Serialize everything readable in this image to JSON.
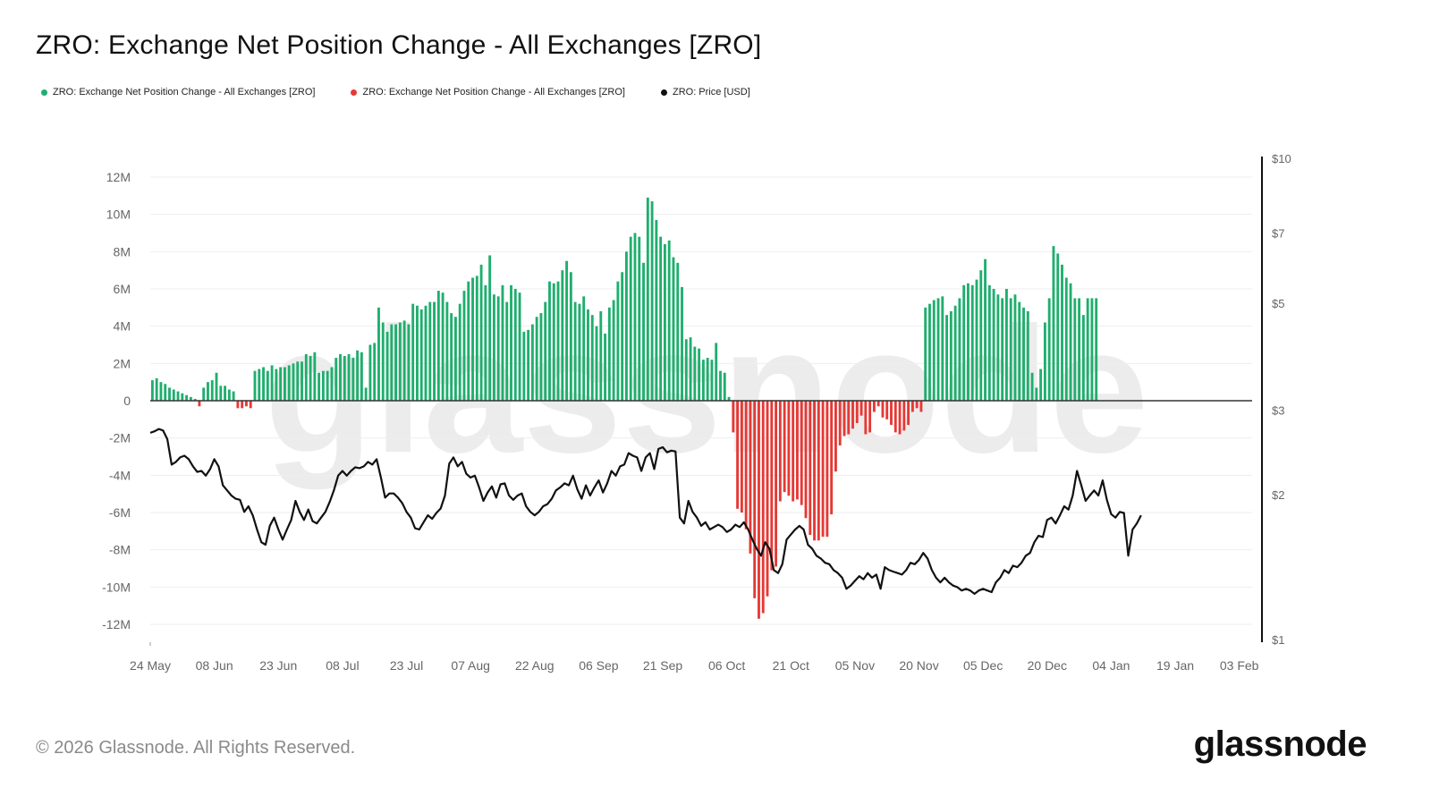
{
  "title": "ZRO: Exchange Net Position Change - All Exchanges [ZRO]",
  "legend": [
    {
      "label": "ZRO: Exchange Net Position Change - All Exchanges [ZRO]",
      "color": "#1fae6e"
    },
    {
      "label": "ZRO: Exchange Net Position Change - All Exchanges [ZRO]",
      "color": "#e53935"
    },
    {
      "label": "ZRO: Price [USD]",
      "color": "#111111"
    }
  ],
  "footer": "© 2026 Glassnode. All Rights Reserved.",
  "brand": "glassnode",
  "watermark": "glassnode",
  "colors": {
    "positive": "#1fae6e",
    "negative": "#e53935",
    "price": "#111111",
    "grid": "#eeeeee",
    "axis": "#111111"
  },
  "chart_data": {
    "type": "bar",
    "title": "ZRO: Exchange Net Position Change - All Exchanges [ZRO]",
    "ylim": [
      -13000000,
      13000000
    ],
    "y_ticks": [
      12000000,
      10000000,
      8000000,
      6000000,
      4000000,
      2000000,
      0,
      -2000000,
      -4000000,
      -6000000,
      -8000000,
      -10000000,
      -12000000
    ],
    "y_tick_labels": [
      "12M",
      "10M",
      "8M",
      "6M",
      "4M",
      "2M",
      "0",
      "-2M",
      "-4M",
      "-6M",
      "-8M",
      "-10M",
      "-12M"
    ],
    "y2_scale": "log",
    "y2lim": [
      1,
      11
    ],
    "y2_ticks": [
      10,
      7,
      5,
      3,
      2,
      1
    ],
    "y2_tick_labels": [
      "$10",
      "$7",
      "$5",
      "$3",
      "$2",
      "$1"
    ],
    "x_tick_labels": [
      "24 May",
      "08 Jun",
      "23 Jun",
      "08 Jul",
      "23 Jul",
      "07 Aug",
      "22 Aug",
      "06 Sep",
      "21 Sep",
      "06 Oct",
      "21 Oct",
      "05 Nov",
      "20 Nov",
      "05 Dec",
      "20 Dec",
      "04 Jan",
      "19 Jan",
      "03 Feb"
    ],
    "x_tick_days": [
      0,
      15,
      30,
      45,
      60,
      75,
      90,
      105,
      120,
      135,
      150,
      165,
      180,
      195,
      210,
      225,
      240,
      255
    ],
    "series": [
      {
        "name": "Exchange Net Position Change",
        "unit": "ZRO",
        "start_day": 0,
        "step_days": 1,
        "values": [
          1100000,
          1200000,
          1000000,
          900000,
          700000,
          600000,
          500000,
          400000,
          300000,
          200000,
          100000,
          -300000,
          700000,
          1000000,
          1100000,
          1500000,
          800000,
          800000,
          600000,
          500000,
          -400000,
          -400000,
          -300000,
          -400000,
          1600000,
          1700000,
          1800000,
          1600000,
          1900000,
          1700000,
          1800000,
          1800000,
          1900000,
          2000000,
          2100000,
          2100000,
          2500000,
          2400000,
          2600000,
          1500000,
          1600000,
          1600000,
          1800000,
          2300000,
          2500000,
          2400000,
          2500000,
          2300000,
          2700000,
          2600000,
          700000,
          3000000,
          3100000,
          5000000,
          4200000,
          3700000,
          4100000,
          4100000,
          4200000,
          4300000,
          4100000,
          5200000,
          5100000,
          4900000,
          5100000,
          5300000,
          5300000,
          5900000,
          5800000,
          5300000,
          4700000,
          4500000,
          5200000,
          5900000,
          6400000,
          6600000,
          6700000,
          7300000,
          6200000,
          7800000,
          5700000,
          5600000,
          6200000,
          5300000,
          6200000,
          6000000,
          5800000,
          3700000,
          3800000,
          4100000,
          4500000,
          4700000,
          5300000,
          6400000,
          6300000,
          6400000,
          7000000,
          7500000,
          6900000,
          5300000,
          5200000,
          5600000,
          4900000,
          4600000,
          4000000,
          4800000,
          3600000,
          5000000,
          5400000,
          6400000,
          6900000,
          8000000,
          8800000,
          9000000,
          8800000,
          7400000,
          10900000,
          10700000,
          9700000,
          8800000,
          8400000,
          8600000,
          7700000,
          7400000,
          6100000,
          3300000,
          3400000,
          2900000,
          2800000,
          2200000,
          2300000,
          2200000,
          3100000,
          1600000,
          1500000,
          200000,
          -1700000,
          -5800000,
          -6000000,
          -6900000,
          -8200000,
          -10600000,
          -11700000,
          -11400000,
          -10500000,
          -9100000,
          -8900000,
          -5400000,
          -4900000,
          -5100000,
          -5400000,
          -5300000,
          -5600000,
          -6300000,
          -7200000,
          -7500000,
          -7500000,
          -7300000,
          -7300000,
          -6100000,
          -3800000,
          -2400000,
          -1900000,
          -1800000,
          -1500000,
          -1200000,
          -800000,
          -1800000,
          -1700000,
          -600000,
          -300000,
          -900000,
          -1000000,
          -1300000,
          -1700000,
          -1800000,
          -1600000,
          -1300000,
          -600000,
          -400000,
          -600000,
          5000000,
          5200000,
          5400000,
          5500000,
          5600000,
          4600000,
          4800000,
          5100000,
          5500000,
          6200000,
          6300000,
          6200000,
          6500000,
          7000000,
          7600000,
          6200000,
          6000000,
          5700000,
          5500000,
          6000000,
          5500000,
          5700000,
          5300000,
          5000000,
          4800000,
          1500000,
          700000,
          1700000,
          4200000,
          5500000,
          8300000,
          7900000,
          7300000,
          6600000,
          6300000,
          5500000,
          5500000,
          4600000,
          5500000,
          5500000,
          5500000
        ]
      },
      {
        "name": "Price",
        "unit": "USD",
        "axis": "right",
        "start_day": 0,
        "step_days": 1,
        "values": [
          2.7,
          2.72,
          2.75,
          2.73,
          2.62,
          2.32,
          2.35,
          2.4,
          2.42,
          2.38,
          2.3,
          2.24,
          2.25,
          2.2,
          2.27,
          2.38,
          2.3,
          2.1,
          2.05,
          2.0,
          1.97,
          1.96,
          1.85,
          1.9,
          1.82,
          1.7,
          1.6,
          1.58,
          1.73,
          1.8,
          1.7,
          1.62,
          1.7,
          1.78,
          1.95,
          1.85,
          1.78,
          1.87,
          1.77,
          1.75,
          1.8,
          1.85,
          1.94,
          2.05,
          2.2,
          2.25,
          2.2,
          2.25,
          2.29,
          2.28,
          2.3,
          2.35,
          2.32,
          2.38,
          2.18,
          1.98,
          2.02,
          2.02,
          1.98,
          1.93,
          1.85,
          1.8,
          1.71,
          1.7,
          1.76,
          1.82,
          1.79,
          1.84,
          1.88,
          2.0,
          2.33,
          2.4,
          2.3,
          2.35,
          2.22,
          2.18,
          2.2,
          2.08,
          1.95,
          2.03,
          2.09,
          1.98,
          2.11,
          2.12,
          2.0,
          1.96,
          2.0,
          2.02,
          1.9,
          1.85,
          1.82,
          1.85,
          1.9,
          1.92,
          1.97,
          2.05,
          2.08,
          2.12,
          2.1,
          2.2,
          2.06,
          1.97,
          2.1,
          2.0,
          2.08,
          2.15,
          2.03,
          2.12,
          2.25,
          2.2,
          2.3,
          2.32,
          2.45,
          2.42,
          2.4,
          2.25,
          2.4,
          2.45,
          2.27,
          2.5,
          2.52,
          2.46,
          2.48,
          2.47,
          1.8,
          1.75,
          1.95,
          1.85,
          1.8,
          1.73,
          1.76,
          1.7,
          1.72,
          1.74,
          1.72,
          1.68,
          1.7,
          1.74,
          1.72,
          1.76,
          1.7,
          1.62,
          1.55,
          1.5,
          1.6,
          1.55,
          1.4,
          1.38,
          1.44,
          1.62,
          1.66,
          1.7,
          1.73,
          1.7,
          1.58,
          1.55,
          1.5,
          1.48,
          1.45,
          1.44,
          1.4,
          1.38,
          1.35,
          1.28,
          1.3,
          1.33,
          1.36,
          1.34,
          1.38,
          1.35,
          1.37,
          1.28,
          1.42,
          1.4,
          1.39,
          1.38,
          1.37,
          1.4,
          1.45,
          1.44,
          1.47,
          1.52,
          1.48,
          1.4,
          1.35,
          1.32,
          1.35,
          1.32,
          1.3,
          1.29,
          1.27,
          1.28,
          1.27,
          1.25,
          1.27,
          1.28,
          1.27,
          1.26,
          1.32,
          1.35,
          1.4,
          1.38,
          1.43,
          1.42,
          1.45,
          1.5,
          1.52,
          1.6,
          1.65,
          1.64,
          1.78,
          1.8,
          1.75,
          1.82,
          1.9,
          1.87,
          2.0,
          2.25,
          2.1,
          1.95,
          2.0,
          2.05,
          2.0,
          2.15,
          1.96,
          1.83,
          1.8,
          1.85,
          1.84,
          1.5,
          1.7,
          1.75,
          1.82
        ]
      }
    ]
  }
}
